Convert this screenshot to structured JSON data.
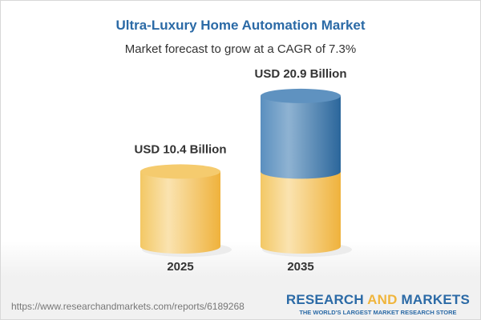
{
  "chart_data": {
    "type": "bar",
    "style": "3d-cylinder",
    "title": "Ultra-Luxury Home Automation Market",
    "subtitle": "Market forecast to grow at a CAGR of 7.3%",
    "categories": [
      "2025",
      "2035"
    ],
    "values": [
      10.4,
      20.9
    ],
    "data_labels": [
      "USD 10.4 Billion",
      "USD 20.9 Billion"
    ],
    "unit": "USD Billion",
    "colors": {
      "base": "#f2c05a",
      "growth": "#3f7bb0"
    },
    "grid": false
  },
  "footer": {
    "url": "https://www.researchandmarkets.com/reports/6189268",
    "logo_part1": "RESEARCH ",
    "logo_part2": "AND",
    "logo_part3": " MARKETS",
    "tagline": "THE WORLD'S LARGEST MARKET RESEARCH STORE"
  }
}
